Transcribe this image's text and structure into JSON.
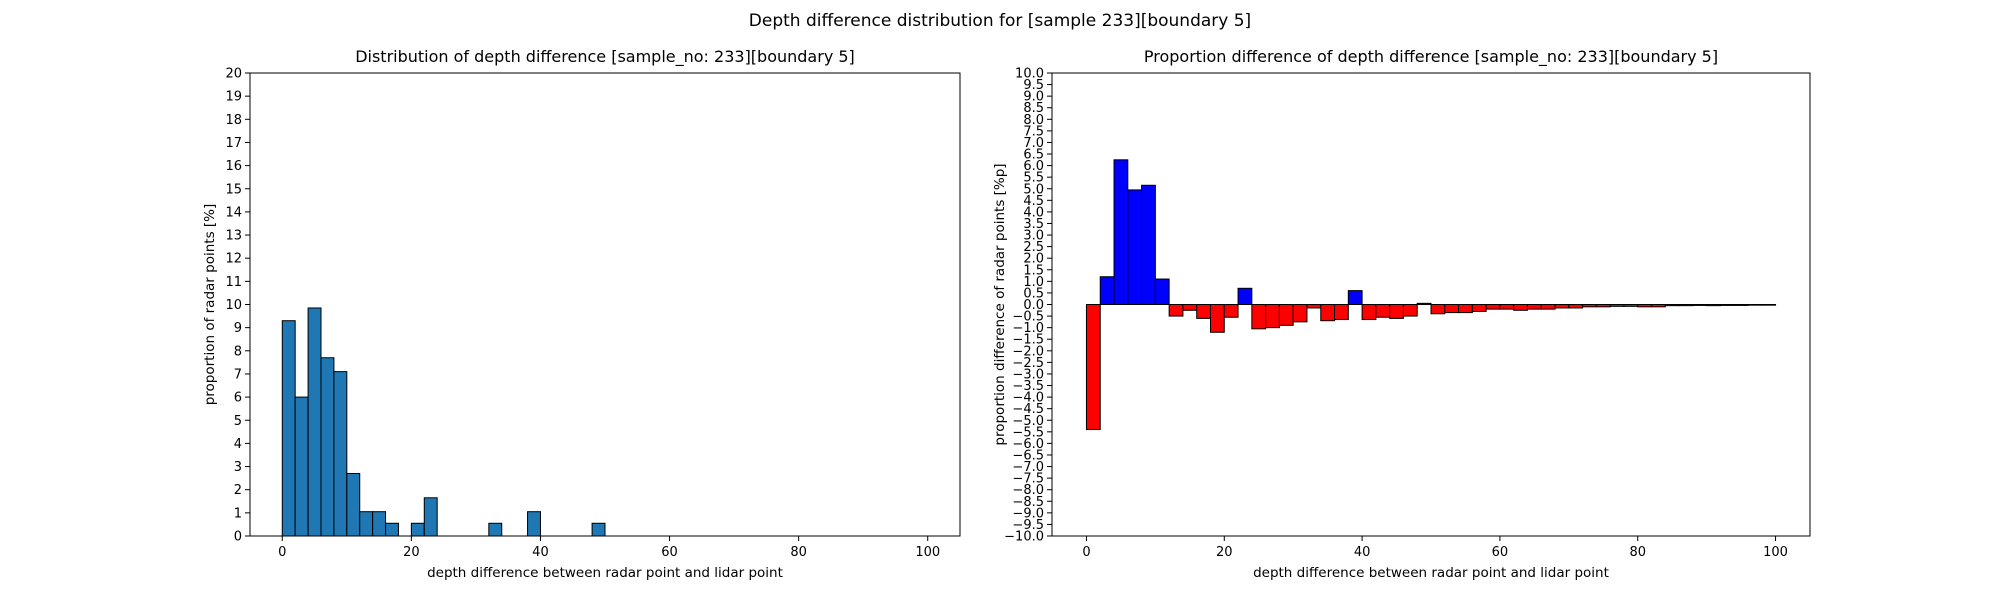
{
  "suptitle": "Depth difference distribution for [sample 233][boundary 5]",
  "colors": {
    "left_bar": "#1f77b4",
    "positive": "#0000ff",
    "negative": "#ff0000",
    "edge": "#000000"
  },
  "chart_data": [
    {
      "type": "bar",
      "title": "Distribution of depth difference [sample_no: 233][boundary 5]",
      "xlabel": "depth difference between radar point and lidar point",
      "ylabel": "proportion of radar points [%]",
      "xlim": [
        -5,
        105
      ],
      "ylim": [
        0,
        20
      ],
      "bin_width": 2,
      "x": [
        0,
        2,
        4,
        6,
        8,
        10,
        12,
        14,
        16,
        20,
        22,
        32,
        38,
        48
      ],
      "values": [
        9.3,
        6.0,
        9.85,
        7.7,
        7.1,
        2.7,
        1.05,
        1.05,
        0.55,
        0.55,
        1.65,
        0.55,
        1.05,
        0.55
      ],
      "xticks": [
        0,
        20,
        40,
        60,
        80,
        100
      ],
      "yticks": [
        0,
        1,
        2,
        3,
        4,
        5,
        6,
        7,
        8,
        9,
        10,
        11,
        12,
        13,
        14,
        15,
        16,
        17,
        18,
        19,
        20
      ]
    },
    {
      "type": "bar",
      "title": "Proportion difference of depth difference [sample_no: 233][boundary 5]",
      "xlabel": "depth difference between radar point and lidar point",
      "ylabel": "proportion difference of radar points [%p]",
      "xlim": [
        -5,
        105
      ],
      "ylim": [
        -10,
        10
      ],
      "bin_width": 2,
      "x": [
        0,
        2,
        4,
        6,
        8,
        10,
        12,
        14,
        16,
        18,
        20,
        22,
        24,
        26,
        28,
        30,
        32,
        34,
        36,
        38,
        40,
        42,
        44,
        46,
        48,
        50,
        52,
        54,
        56,
        58,
        60,
        62,
        64,
        66,
        68,
        70,
        72,
        74,
        76,
        78,
        80,
        82,
        84,
        86,
        88,
        90,
        92,
        94,
        96,
        98
      ],
      "values": [
        -5.4,
        1.2,
        6.25,
        4.95,
        5.15,
        1.1,
        -0.5,
        -0.25,
        -0.6,
        -1.2,
        -0.55,
        0.7,
        -1.05,
        -1.0,
        -0.9,
        -0.75,
        -0.15,
        -0.7,
        -0.65,
        0.6,
        -0.65,
        -0.55,
        -0.6,
        -0.5,
        0.05,
        -0.4,
        -0.35,
        -0.35,
        -0.3,
        -0.2,
        -0.2,
        -0.25,
        -0.2,
        -0.2,
        -0.15,
        -0.15,
        -0.1,
        -0.1,
        -0.08,
        -0.08,
        -0.1,
        -0.1,
        -0.05,
        -0.05,
        -0.04,
        -0.05,
        -0.04,
        -0.04,
        -0.03,
        -0.03
      ],
      "xticks": [
        0,
        20,
        40,
        60,
        80,
        100
      ],
      "yticks": [
        -10.0,
        -9.5,
        -9.0,
        -8.5,
        -8.0,
        -7.5,
        -7.0,
        -6.5,
        -6.0,
        -5.5,
        -5.0,
        -4.5,
        -4.0,
        -3.5,
        -3.0,
        -2.5,
        -2.0,
        -1.5,
        -1.0,
        -0.5,
        0.0,
        0.5,
        1.0,
        1.5,
        2.0,
        2.5,
        3.0,
        3.5,
        4.0,
        4.5,
        5.0,
        5.5,
        6.0,
        6.5,
        7.0,
        7.5,
        8.0,
        8.5,
        9.0,
        9.5,
        10.0
      ]
    }
  ]
}
